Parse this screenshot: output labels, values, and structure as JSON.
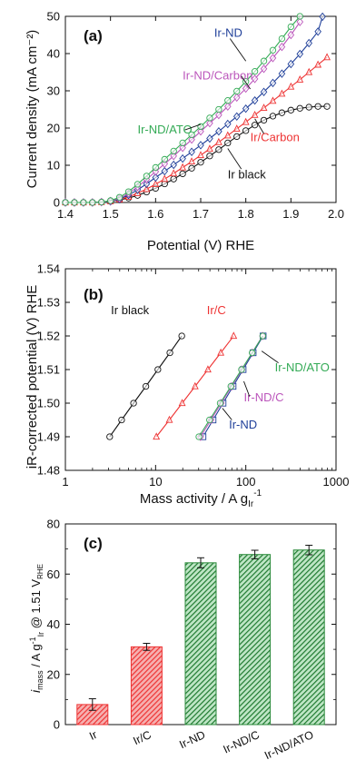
{
  "chart_data": [
    {
      "type": "line",
      "panel": "(a)",
      "xlabel": "Potential (V) RHE",
      "ylabel": "Current density (mA cm⁻²)",
      "xlim": [
        1.4,
        2.0
      ],
      "ylim": [
        0,
        50
      ],
      "xticks": [
        "1.4",
        "1.5",
        "1.6",
        "1.7",
        "1.8",
        "1.9",
        "2.0"
      ],
      "yticks": [
        "0",
        "10",
        "20",
        "30",
        "40",
        "50"
      ],
      "series": [
        {
          "name": "Ir black",
          "color": "#111111",
          "marker": "circle",
          "x": [
            1.4,
            1.42,
            1.44,
            1.46,
            1.48,
            1.5,
            1.52,
            1.54,
            1.56,
            1.58,
            1.6,
            1.62,
            1.64,
            1.66,
            1.68,
            1.7,
            1.72,
            1.74,
            1.76,
            1.78,
            1.8,
            1.82,
            1.84,
            1.86,
            1.88,
            1.9,
            1.92,
            1.94,
            1.96,
            1.98
          ],
          "y": [
            0,
            0,
            0,
            0,
            0.1,
            0.3,
            0.7,
            1.2,
            1.9,
            2.8,
            3.8,
            5.0,
            6.3,
            7.7,
            9.2,
            10.8,
            12.5,
            14.2,
            16.0,
            17.7,
            19.3,
            20.8,
            22.1,
            23.2,
            24.1,
            24.8,
            25.3,
            25.6,
            25.8,
            25.8
          ]
        },
        {
          "name": "Ir/Carbon",
          "color": "#ee3333",
          "marker": "triangle",
          "x": [
            1.4,
            1.42,
            1.44,
            1.46,
            1.48,
            1.5,
            1.52,
            1.54,
            1.56,
            1.58,
            1.6,
            1.62,
            1.64,
            1.66,
            1.68,
            1.7,
            1.72,
            1.74,
            1.76,
            1.78,
            1.8,
            1.82,
            1.84,
            1.86,
            1.88,
            1.9,
            1.92,
            1.94,
            1.96,
            1.98
          ],
          "y": [
            0,
            0,
            0,
            0,
            0.1,
            0.3,
            0.8,
            1.5,
            2.5,
            3.6,
            4.9,
            6.3,
            7.8,
            9.4,
            11.0,
            12.7,
            14.4,
            16.2,
            18.0,
            19.8,
            21.6,
            23.5,
            25.4,
            27.3,
            29.2,
            31.1,
            33.0,
            35.0,
            37.0,
            39.0
          ]
        },
        {
          "name": "Ir-ND",
          "color": "#1f3f99",
          "marker": "diamond",
          "x": [
            1.4,
            1.42,
            1.44,
            1.46,
            1.48,
            1.5,
            1.52,
            1.54,
            1.56,
            1.58,
            1.6,
            1.62,
            1.64,
            1.66,
            1.68,
            1.7,
            1.72,
            1.74,
            1.76,
            1.78,
            1.8,
            1.82,
            1.84,
            1.86,
            1.88,
            1.9,
            1.92,
            1.94,
            1.96,
            1.97
          ],
          "y": [
            0,
            0,
            0,
            0,
            0.1,
            0.3,
            0.9,
            2.0,
            3.4,
            5.0,
            6.7,
            8.4,
            10.1,
            11.8,
            13.6,
            15.4,
            17.2,
            19.1,
            21.1,
            23.1,
            25.2,
            27.4,
            29.7,
            32.1,
            34.6,
            37.2,
            39.9,
            42.8,
            45.9,
            49.9
          ]
        },
        {
          "name": "Ir-ND/Carbon",
          "color": "#bb55bb",
          "marker": "diamond",
          "x": [
            1.4,
            1.42,
            1.44,
            1.46,
            1.48,
            1.5,
            1.52,
            1.54,
            1.56,
            1.58,
            1.6,
            1.62,
            1.64,
            1.66,
            1.68,
            1.7,
            1.72,
            1.74,
            1.76,
            1.78,
            1.8,
            1.82,
            1.84,
            1.86,
            1.88,
            1.9,
            1.92
          ],
          "y": [
            0,
            0,
            0,
            0,
            0.1,
            0.4,
            1.1,
            2.4,
            4.2,
            6.2,
            8.3,
            10.4,
            12.5,
            14.7,
            16.9,
            19.1,
            21.3,
            23.5,
            25.8,
            28.2,
            30.6,
            33.2,
            35.9,
            38.8,
            41.8,
            45.0,
            48.5
          ]
        },
        {
          "name": "Ir-ND/ATO",
          "color": "#33aa55",
          "marker": "circle",
          "x": [
            1.4,
            1.42,
            1.44,
            1.46,
            1.48,
            1.5,
            1.52,
            1.54,
            1.56,
            1.58,
            1.6,
            1.62,
            1.64,
            1.66,
            1.68,
            1.7,
            1.72,
            1.74,
            1.76,
            1.78,
            1.8,
            1.82,
            1.84,
            1.86,
            1.88,
            1.9,
            1.92
          ],
          "y": [
            0,
            0,
            0,
            0,
            0.1,
            0.5,
            1.4,
            2.9,
            4.9,
            7.1,
            9.4,
            11.6,
            13.8,
            16.0,
            18.2,
            20.4,
            22.7,
            25.0,
            27.4,
            29.9,
            32.5,
            35.2,
            38.0,
            40.9,
            44.0,
            47.2,
            50.0
          ]
        }
      ],
      "labels": [
        {
          "text": "Ir-ND",
          "x": 1.73,
          "y": 44.5,
          "color": "#1f3f99"
        },
        {
          "text": "Ir-ND/Carbon",
          "x": 1.66,
          "y": 33.0,
          "color": "#bb55bb"
        },
        {
          "text": "Ir-ND/ATO",
          "x": 1.56,
          "y": 18.5,
          "color": "#33aa55"
        },
        {
          "text": "Ir/Carbon",
          "x": 1.81,
          "y": 16.5,
          "color": "#ee3333"
        },
        {
          "text": "Ir black",
          "x": 1.76,
          "y": 6.5,
          "color": "#111111"
        }
      ]
    },
    {
      "type": "line",
      "panel": "(b)",
      "xlabel": "Mass activity / A gᵢᵣ⁻¹",
      "xlabel_main": "Mass activity / A g",
      "xlabel_sub": "Ir",
      "xlabel_sup": "-1",
      "ylabel": "iR-corrected potential (V) RHE",
      "xscale": "log",
      "xlim": [
        1,
        1000
      ],
      "ylim": [
        1.48,
        1.54
      ],
      "xticks": [
        "1",
        "10",
        "100",
        "1000"
      ],
      "yticks": [
        "1.48",
        "1.49",
        "1.50",
        "1.51",
        "1.52",
        "1.53",
        "1.54"
      ],
      "series": [
        {
          "name": "Ir black",
          "color": "#111111",
          "marker": "circle",
          "x": [
            3.1,
            4.2,
            5.7,
            7.8,
            10.6,
            14.4,
            19.5
          ],
          "y": [
            1.49,
            1.495,
            1.5,
            1.505,
            1.51,
            1.515,
            1.52
          ]
        },
        {
          "name": "Ir/C",
          "color": "#ee3333",
          "marker": "triangle",
          "x": [
            10.2,
            14.2,
            19.7,
            27.4,
            38.0,
            52.8,
            73.3
          ],
          "y": [
            1.49,
            1.495,
            1.5,
            1.505,
            1.51,
            1.515,
            1.52
          ]
        },
        {
          "name": "Ir-ND",
          "color": "#1f3f99",
          "marker": "square",
          "x": [
            33.5,
            43.3,
            55.9,
            72.2,
            93.3,
            120.5,
            155.6
          ],
          "y": [
            1.49,
            1.495,
            1.5,
            1.505,
            1.51,
            1.515,
            1.52
          ]
        },
        {
          "name": "Ir-ND/C",
          "color": "#bb55bb",
          "marker": "diamond",
          "x": [
            31.5,
            41.0,
            53.4,
            69.5,
            90.5,
            117.8,
            153.3
          ],
          "y": [
            1.49,
            1.495,
            1.5,
            1.505,
            1.51,
            1.515,
            1.52
          ]
        },
        {
          "name": "Ir-ND/ATO",
          "color": "#33aa55",
          "marker": "circle",
          "x": [
            30.2,
            39.6,
            52.0,
            68.3,
            89.6,
            117.6,
            154.4
          ],
          "y": [
            1.49,
            1.495,
            1.5,
            1.505,
            1.51,
            1.515,
            1.52
          ]
        }
      ],
      "labels": [
        {
          "text": "Ir black",
          "x": 3.2,
          "y": 1.5265,
          "color": "#111111"
        },
        {
          "text": "Ir/C",
          "x": 37.0,
          "y": 1.5265,
          "color": "#ee3333"
        },
        {
          "text": "Ir-ND/ATO",
          "x": 210,
          "y": 1.5095,
          "color": "#33aa55"
        },
        {
          "text": "Ir-ND/C",
          "x": 95,
          "y": 1.5005,
          "color": "#bb55bb"
        },
        {
          "text": "Ir-ND",
          "x": 65,
          "y": 1.4925,
          "color": "#1f3f99"
        }
      ]
    },
    {
      "type": "bar",
      "panel": "(c)",
      "ylabel_parts": {
        "i": "i",
        "mass_sub": "mass",
        "mid": " / A g",
        "sup": "-1",
        "ir_sub": "Ir",
        "at": " @ 1.51 V",
        "rhe_sub": "RHE"
      },
      "ylim": [
        0,
        80
      ],
      "yticks": [
        "0",
        "20",
        "40",
        "60",
        "80"
      ],
      "categories": [
        "Ir",
        "Ir/C",
        "Ir-ND",
        "Ir-ND/C",
        "Ir-ND/ATO"
      ],
      "values": [
        8.0,
        31.0,
        64.5,
        67.8,
        69.6
      ],
      "errors": [
        2.3,
        1.4,
        2.0,
        1.7,
        1.9
      ],
      "colors": [
        "#ee3333",
        "#ee3333",
        "#2a8a3a",
        "#2a8a3a",
        "#2a8a3a"
      ]
    }
  ]
}
